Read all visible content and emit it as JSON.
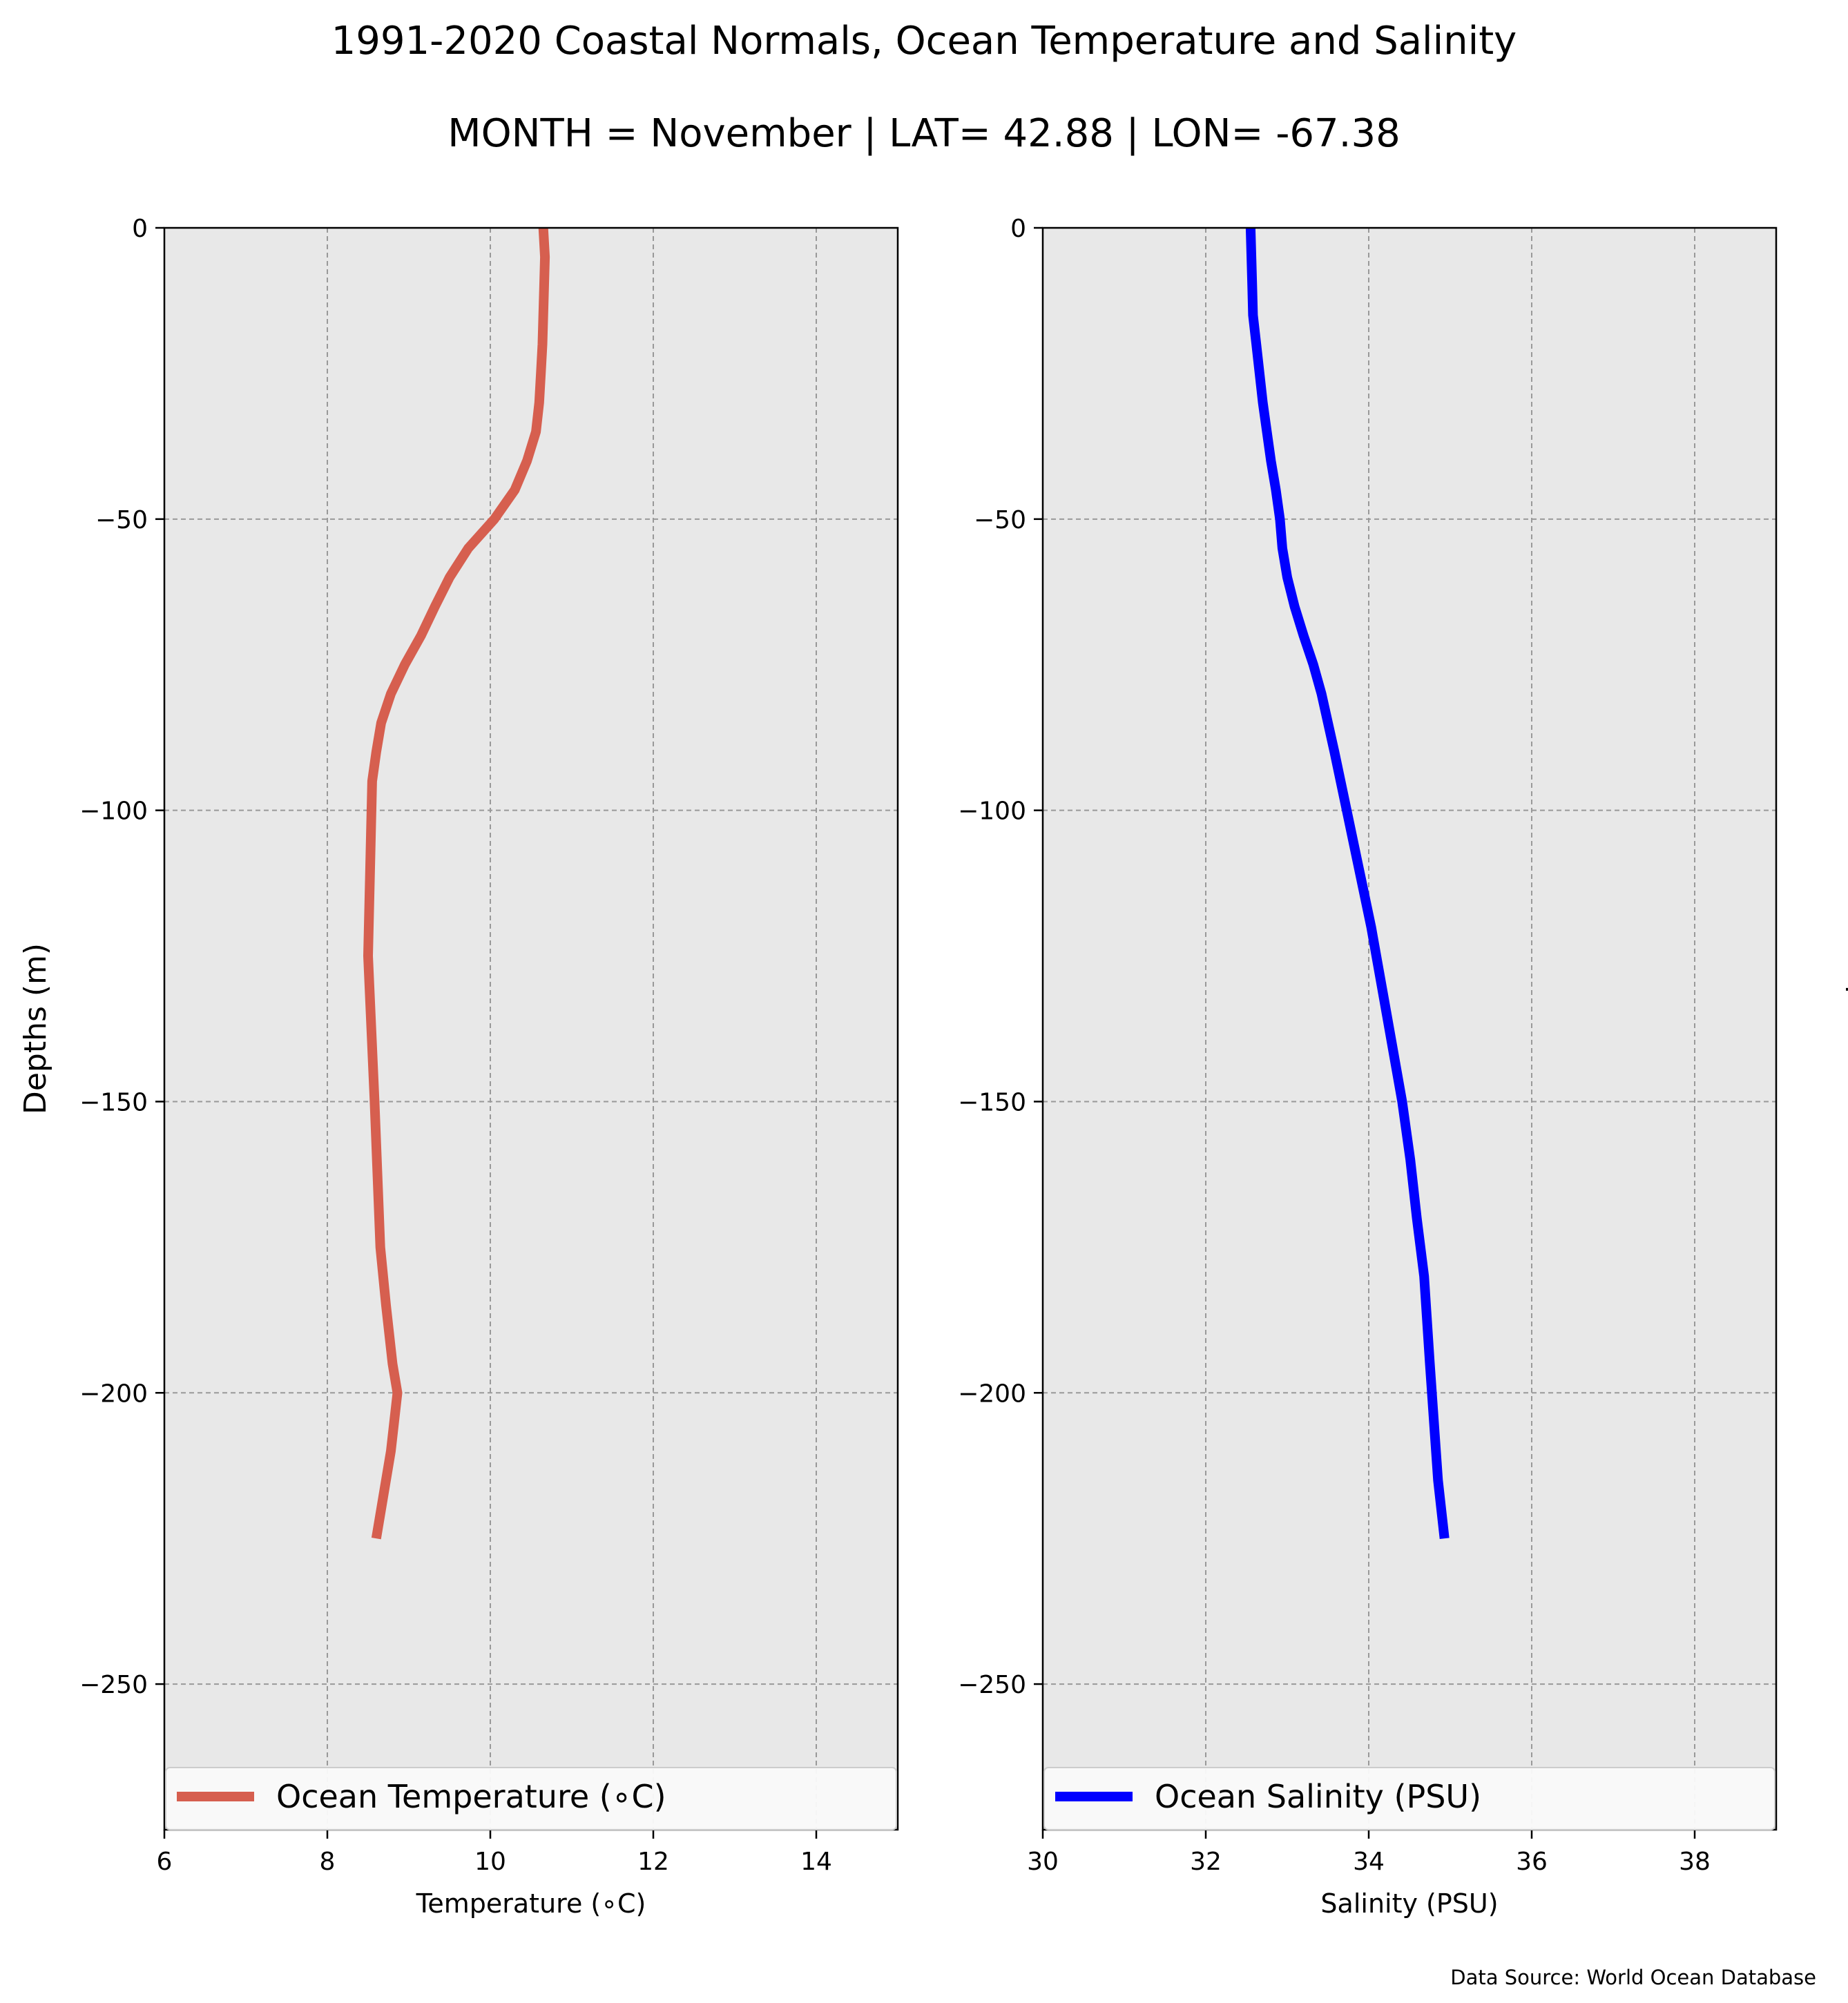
{
  "figure": {
    "title_line1": "1991-2020 Coastal Normals, Ocean Temperature and Salinity",
    "title_line2": "MONTH = November | LAT= 42.88 | LON= -67.38",
    "source": "Data Source: World Ocean Database",
    "background": "#ffffff",
    "axes_facecolor": "#e8e8e8",
    "grid_color": "#999999"
  },
  "chart_data": [
    {
      "type": "line",
      "xlabel": "Temperature (∘C)",
      "ylabel": "Depths (m)",
      "ylabel_side": "left",
      "xlim": [
        6,
        15
      ],
      "ylim": [
        -275,
        0
      ],
      "xticks": [
        6,
        8,
        10,
        12,
        14
      ],
      "xtick_labels": [
        "6",
        "8",
        "10",
        "12",
        "14"
      ],
      "yticks": [
        0,
        -50,
        -100,
        -150,
        -200,
        -250
      ],
      "ytick_labels": [
        "0",
        "−50",
        "−100",
        "−150",
        "−200",
        "−250"
      ],
      "grid": true,
      "legend_position": "bottom",
      "series": [
        {
          "name": "Ocean Temperature (∘C)",
          "color": "#d65f4f",
          "x": [
            10.65,
            10.67,
            10.66,
            10.65,
            10.64,
            10.62,
            10.6,
            10.56,
            10.45,
            10.3,
            10.05,
            9.73,
            9.5,
            9.32,
            9.15,
            8.95,
            8.78,
            8.66,
            8.6,
            8.55,
            8.5,
            8.58,
            8.65,
            8.72,
            8.8,
            8.86,
            8.78,
            8.6
          ],
          "y": [
            0,
            -5,
            -10,
            -15,
            -20,
            -25,
            -30,
            -35,
            -40,
            -45,
            -50,
            -55,
            -60,
            -65,
            -70,
            -75,
            -80,
            -85,
            -90,
            -95,
            -125,
            -150,
            -175,
            -185,
            -195,
            -200,
            -210,
            -225
          ]
        }
      ]
    },
    {
      "type": "line",
      "xlabel": "Salinity (PSU)",
      "ylabel": "Depths (m)",
      "ylabel_side": "right",
      "xlim": [
        30,
        39
      ],
      "ylim": [
        -275,
        0
      ],
      "xticks": [
        30,
        32,
        34,
        36,
        38
      ],
      "xtick_labels": [
        "30",
        "32",
        "34",
        "36",
        "38"
      ],
      "yticks": [
        0,
        -50,
        -100,
        -150,
        -200,
        -250
      ],
      "ytick_labels": [
        "0",
        "−50",
        "−100",
        "−150",
        "−200",
        "−250"
      ],
      "grid": true,
      "legend_position": "bottom",
      "series": [
        {
          "name": "Ocean Salinity (PSU)",
          "color": "#0000ff",
          "x": [
            32.55,
            32.56,
            32.57,
            32.58,
            32.62,
            32.66,
            32.7,
            32.75,
            32.8,
            32.86,
            32.91,
            32.94,
            33.0,
            33.09,
            33.2,
            33.32,
            33.42,
            33.58,
            33.73,
            33.88,
            34.03,
            34.22,
            34.41,
            34.51,
            34.59,
            34.68,
            34.75,
            34.85,
            34.93
          ],
          "y": [
            0,
            -5,
            -10,
            -15,
            -20,
            -25,
            -30,
            -35,
            -40,
            -45,
            -50,
            -55,
            -60,
            -65,
            -70,
            -75,
            -80,
            -90,
            -100,
            -110,
            -120,
            -135,
            -150,
            -160,
            -170,
            -180,
            -195,
            -215,
            -225
          ]
        }
      ]
    }
  ]
}
